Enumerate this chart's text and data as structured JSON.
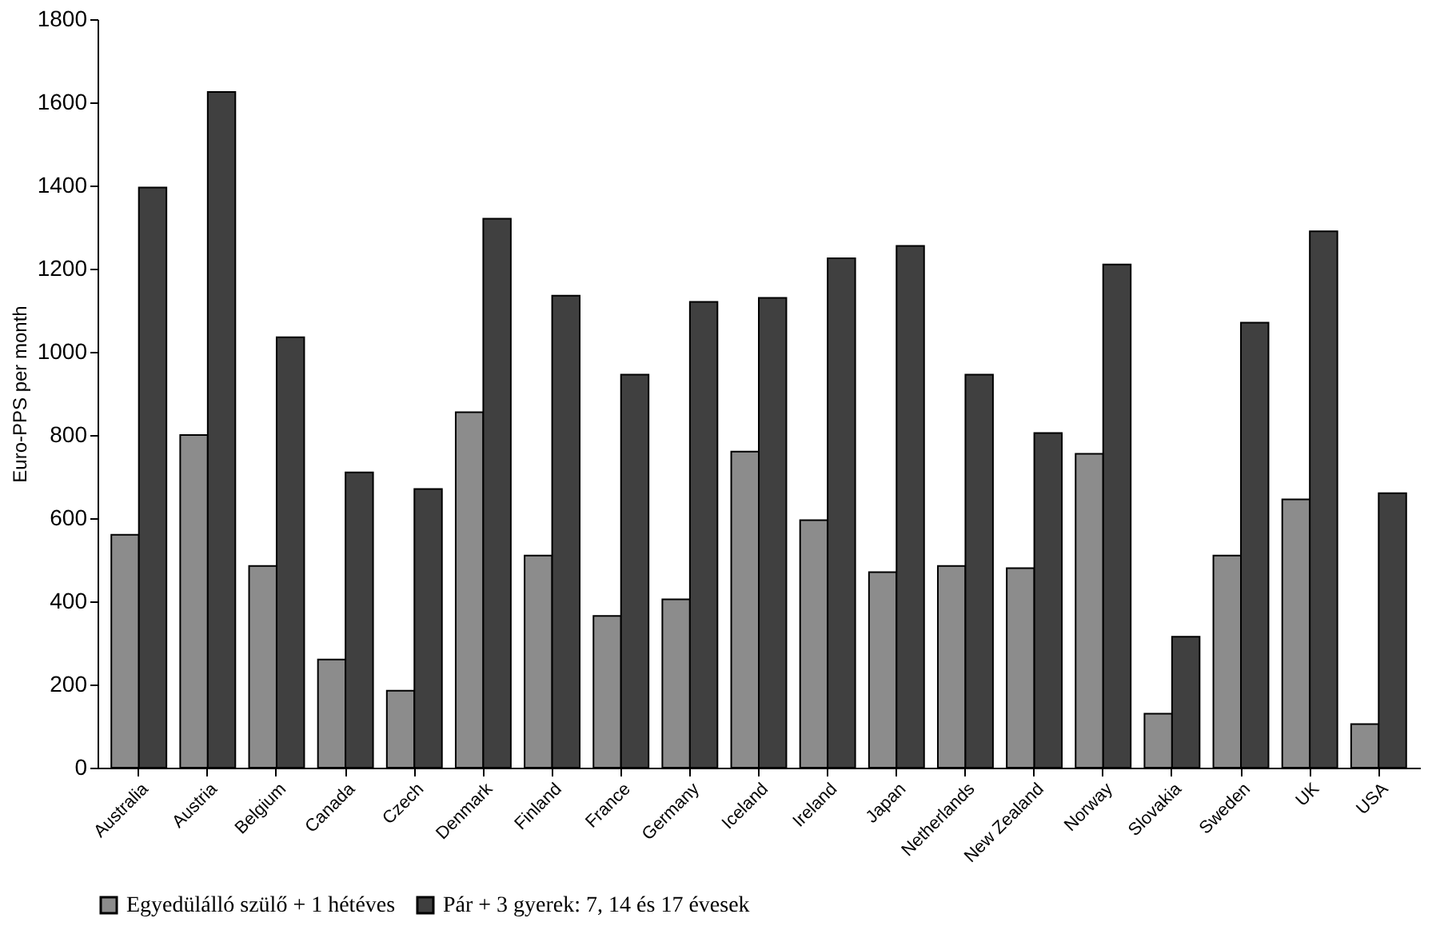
{
  "chart_data": {
    "type": "bar",
    "ylabel": "Euro-PPS per month",
    "categories": [
      "Australia",
      "Austria",
      "Belgium",
      "Canada",
      "Czech",
      "Denmark",
      "Finland",
      "France",
      "Germany",
      "Iceland",
      "Ireland",
      "Japan",
      "Netherlands",
      "New Zealand",
      "Norway",
      "Slovakia",
      "Sweden",
      "UK",
      "USA"
    ],
    "series": [
      {
        "name": "Egyedülálló szülő + 1 hétéves",
        "color": "#8c8c8c",
        "values": [
          560,
          800,
          485,
          260,
          185,
          855,
          510,
          365,
          405,
          760,
          595,
          470,
          485,
          480,
          755,
          130,
          510,
          645,
          105
        ]
      },
      {
        "name": "Pár + 3 gyerek: 7, 14 és 17 évesek",
        "color": "#404040",
        "values": [
          1395,
          1625,
          1035,
          710,
          670,
          1320,
          1135,
          945,
          1120,
          1130,
          1225,
          1255,
          945,
          805,
          1210,
          315,
          1070,
          1290,
          660
        ]
      }
    ],
    "ylim": [
      0,
      1800
    ],
    "yticks": [
      0,
      200,
      400,
      600,
      800,
      1000,
      1200,
      1400,
      1600,
      1800
    ],
    "grid": false,
    "legend": "bottom"
  }
}
